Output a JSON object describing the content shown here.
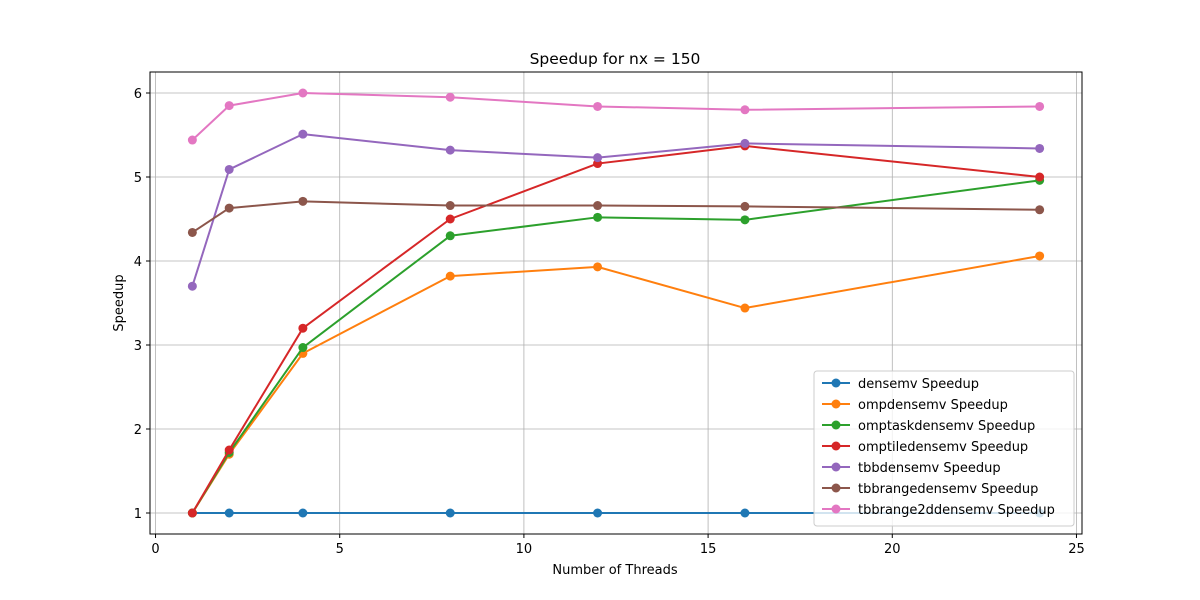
{
  "chart_data": {
    "type": "line",
    "title": "Speedup for nx = 150",
    "xlabel": "Number of Threads",
    "ylabel": "Speedup",
    "xlim": [
      -0.15,
      25.15
    ],
    "ylim": [
      0.75,
      6.25
    ],
    "xticks": [
      0,
      5,
      10,
      15,
      20,
      25
    ],
    "yticks": [
      1,
      2,
      3,
      4,
      5,
      6
    ],
    "grid": true,
    "legend_position": "lower right",
    "x": [
      1,
      2,
      4,
      8,
      12,
      16,
      24
    ],
    "series": [
      {
        "name": "densemv Speedup",
        "color": "#1f77b4",
        "values": [
          1.0,
          1.0,
          1.0,
          1.0,
          1.0,
          1.0,
          1.0
        ]
      },
      {
        "name": "ompdensemv Speedup",
        "color": "#ff7f0e",
        "values": [
          1.0,
          1.7,
          2.9,
          3.82,
          3.93,
          3.44,
          4.06
        ]
      },
      {
        "name": "omptaskdensemv Speedup",
        "color": "#2ca02c",
        "values": [
          1.0,
          1.72,
          2.97,
          4.3,
          4.52,
          4.49,
          4.96
        ]
      },
      {
        "name": "omptiledensemv Speedup",
        "color": "#d62728",
        "values": [
          1.0,
          1.75,
          3.2,
          4.5,
          5.16,
          5.37,
          5.0
        ]
      },
      {
        "name": "tbbdensemv Speedup",
        "color": "#9467bd",
        "values": [
          3.7,
          5.09,
          5.51,
          5.32,
          5.23,
          5.4,
          5.34
        ]
      },
      {
        "name": "tbbrangedensemv Speedup",
        "color": "#8c564b",
        "values": [
          4.34,
          4.63,
          4.71,
          4.66,
          4.66,
          4.65,
          4.61
        ]
      },
      {
        "name": "tbbrange2ddensemv Speedup",
        "color": "#e377c2",
        "values": [
          5.44,
          5.85,
          6.0,
          5.95,
          5.84,
          5.8,
          5.84
        ]
      }
    ]
  }
}
